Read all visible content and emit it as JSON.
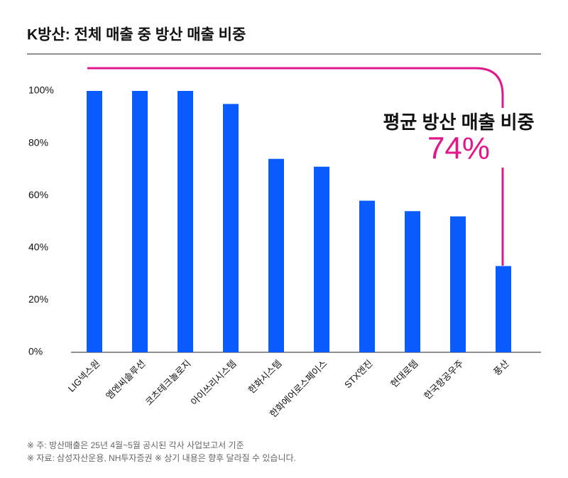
{
  "chart_data": {
    "type": "bar",
    "title": "K방산: 전체 매출 중 방산 매출 비중",
    "categories": [
      "LIG넥스원",
      "엠엔씨솔루션",
      "코츠테크놀로지",
      "아이쓰리시스템",
      "한화시스템",
      "한화에어로스페이스",
      "STX엔진",
      "현대로템",
      "한국항공우주",
      "풍산"
    ],
    "values": [
      100,
      100,
      100,
      95,
      74,
      71,
      58,
      54,
      52,
      33
    ],
    "color": "#0a5cff",
    "ylim": [
      0,
      100
    ],
    "yticks": [
      {
        "value": 0,
        "label": "0%"
      },
      {
        "value": 20,
        "label": "20%"
      },
      {
        "value": 40,
        "label": "40%"
      },
      {
        "value": 60,
        "label": "60%"
      },
      {
        "value": 80,
        "label": "80%"
      },
      {
        "value": 100,
        "label": "100%"
      }
    ],
    "annotation": {
      "text": "평균 방산 매출 비중",
      "value": 74,
      "label": "74%"
    },
    "notes": [
      "※ 주: 방산매출은 25년 4월~5월 공시된 각사 사업보고서 기준",
      "※ 자료: 삼성자산운용, NH투자증권 ※ 상기 내용은 향후 달라질 수 있습니다."
    ]
  }
}
